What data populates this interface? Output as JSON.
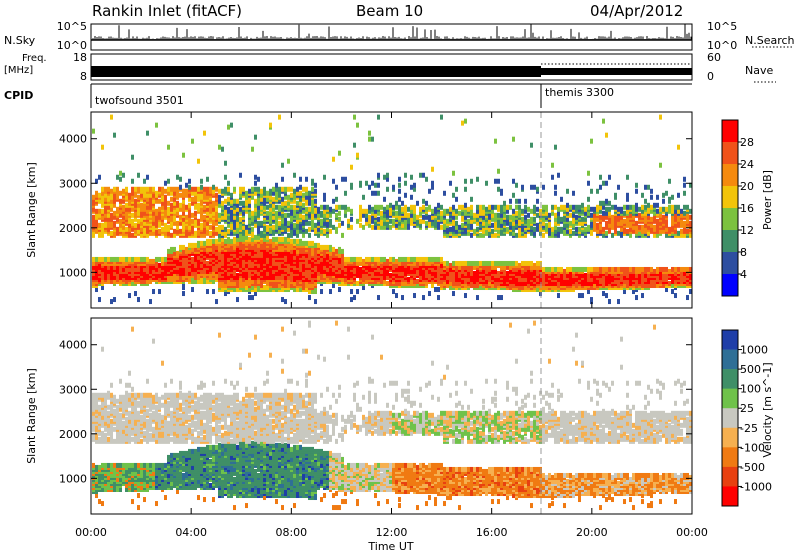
{
  "header": {
    "station": "Rankin Inlet (fitACF)",
    "beam": "Beam 10",
    "date": "04/Apr/2012"
  },
  "top_panels": {
    "nsky_label": "N.Sky",
    "nsearch_label": "N.Search",
    "nsky_ticks": [
      "10^5",
      "10^0"
    ],
    "nsearch_ticks": [
      "10^5",
      "10^0"
    ],
    "freq_label_1": "Freq.",
    "freq_label_2": "[MHz]",
    "freq_ticks": [
      "18",
      "8"
    ],
    "nave_label": "Nave",
    "nave_ticks": [
      "60",
      "0"
    ],
    "cpid_label": "CPID",
    "cpid_segments": [
      {
        "name": "twofsound 3501",
        "start_hour": 0
      },
      {
        "name": "themis 3300",
        "start_hour": 18
      }
    ]
  },
  "chart_data": [
    {
      "type": "heatmap",
      "panel": "power",
      "ylabel": "Slant Range [km]",
      "ylim": [
        200,
        4600
      ],
      "yticks": [
        1000,
        2000,
        3000,
        4000
      ],
      "xlim_hours": [
        0,
        24
      ],
      "colorbar_label": "Power [dB]",
      "colorbar_ticks": [
        "4",
        "8",
        "12",
        "16",
        "20",
        "24",
        "28"
      ],
      "colors": [
        "#0000ff",
        "#2d4ea0",
        "#3f8f67",
        "#7cc23f",
        "#f2c40a",
        "#f58a0e",
        "#f0521a",
        "#ff0000"
      ],
      "regions": [
        {
          "label": "near-range E/F band",
          "x_hours": [
            0,
            24
          ],
          "range_km": [
            600,
            1400
          ],
          "level": "high"
        },
        {
          "label": "upper band",
          "x_hours": [
            0,
            24
          ],
          "range_km": [
            1800,
            2800
          ],
          "level": "medium"
        }
      ]
    },
    {
      "type": "heatmap",
      "panel": "velocity",
      "ylabel": "Slant Range [km]",
      "ylim": [
        200,
        4600
      ],
      "yticks": [
        1000,
        2000,
        3000,
        4000
      ],
      "xlim_hours": [
        0,
        24
      ],
      "colorbar_label": "Velocity [m s^-1]",
      "colorbar_ticks": [
        "1000",
        "500",
        "100",
        "25",
        "-25",
        "-100",
        "-500",
        "-1000"
      ],
      "colors": [
        "#1f3ea8",
        "#2f6f96",
        "#3f8f67",
        "#6fc24a",
        "#c8c8c0",
        "#f6b050",
        "#f07a12",
        "#e84010",
        "#ff0000"
      ],
      "regions": [
        {
          "label": "ground scatter",
          "x_hours": [
            0,
            24
          ],
          "range_km": [
            1800,
            2800
          ],
          "level": "zero"
        },
        {
          "label": "positive flow",
          "x_hours": [
            0,
            10
          ],
          "range_km": [
            700,
            1500
          ],
          "level": "positive"
        },
        {
          "label": "negative flow",
          "x_hours": [
            12,
            24
          ],
          "range_km": [
            600,
            1300
          ],
          "level": "negative"
        }
      ]
    }
  ],
  "x_axis": {
    "label": "Time UT",
    "ticks": [
      "00:00",
      "04:00",
      "08:00",
      "12:00",
      "16:00",
      "20:00",
      "00:00"
    ]
  }
}
